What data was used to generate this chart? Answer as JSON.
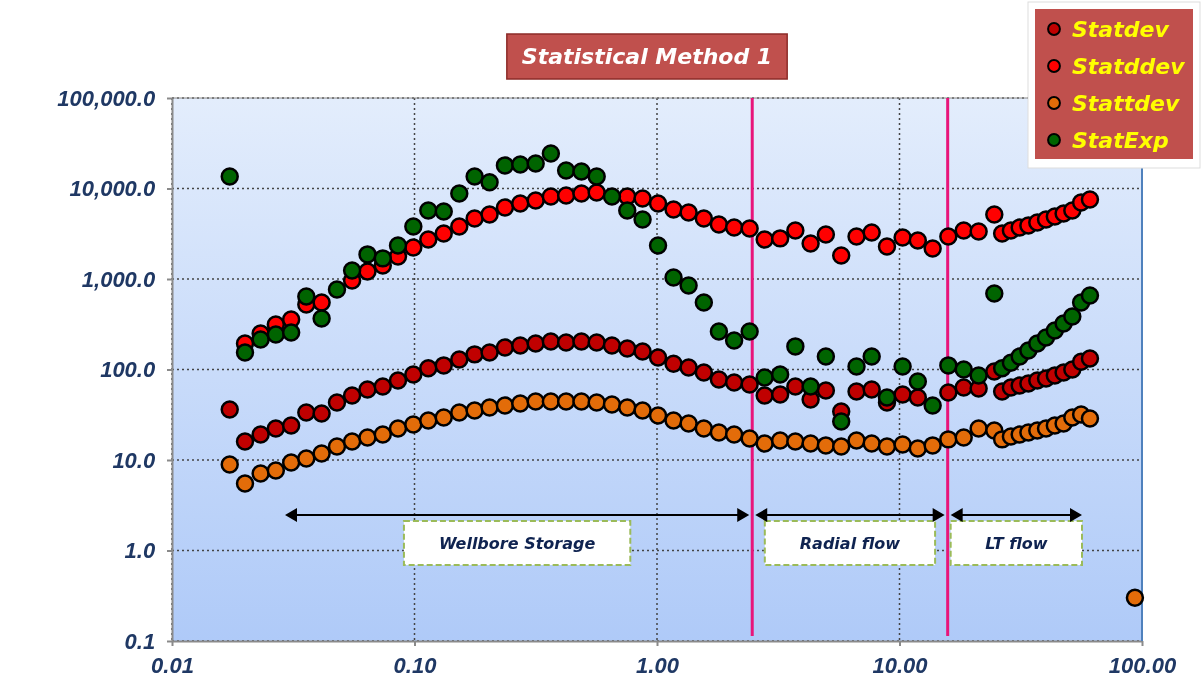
{
  "chart_data": {
    "type": "scatter",
    "title": "Statistical Method 1",
    "x": [
      0.0173,
      0.02,
      0.0232,
      0.0268,
      0.031,
      0.0358,
      0.0414,
      0.0479,
      0.0553,
      0.064,
      0.074,
      0.0855,
      0.0989,
      0.114,
      0.132,
      0.153,
      0.177,
      0.204,
      0.236,
      0.273,
      0.316,
      0.365,
      0.422,
      0.488,
      0.564,
      0.652,
      0.754,
      0.872,
      1.01,
      1.17,
      1.35,
      1.56,
      1.8,
      2.08,
      2.41,
      2.78,
      3.22,
      3.72,
      4.3,
      4.97,
      5.75,
      6.65,
      7.68,
      8.88,
      10.3,
      11.9,
      13.7,
      15.9,
      18.4,
      21.2,
      24.6,
      26.5,
      28.8,
      31.3,
      34,
      37,
      40.2,
      43.7,
      47.5,
      51.6,
      56.1,
      61
    ],
    "series": [
      {
        "name": "Statdev",
        "color": "#c00000",
        "values": [
          36.1,
          16,
          19.1,
          22.3,
          24,
          33.5,
          32.7,
          43.2,
          51.6,
          60.1,
          64.9,
          75.5,
          88.1,
          103,
          111,
          129,
          147,
          154,
          175,
          184,
          194,
          204,
          199,
          204,
          199,
          184,
          171,
          158,
          136,
          116,
          105,
          92.7,
          77.6,
          71.8,
          68.2,
          51.6,
          53,
          64.9,
          46.6,
          58.6,
          34.4,
          57.1,
          60.1,
          43.2,
          53,
          49.1,
          null,
          55.7,
          63.2,
          61.7,
          95,
          57.1,
          63.2,
          66.5,
          70,
          75.5,
          79.6,
          85.9,
          92.7,
          100,
          122,
          132
        ]
      },
      {
        "name": "Statddev",
        "color": "#ff0000",
        "values": [
          null,
          194,
          250,
          314,
          357,
          522,
          549,
          null,
          962,
          1210,
          1410,
          1770,
          2230,
          2730,
          3180,
          3800,
          4670,
          5160,
          6170,
          6820,
          7360,
          8160,
          8370,
          8810,
          9040,
          null,
          8160,
          7760,
          6820,
          5860,
          5430,
          4670,
          4000,
          3700,
          3610,
          2730,
          2810,
          3440,
          2470,
          3100,
          1820,
          2950,
          3270,
          2290,
          2880,
          2660,
          2170,
          2950,
          3440,
          3350,
          5160,
          3180,
          3440,
          3700,
          3900,
          4210,
          4550,
          4910,
          5300,
          5710,
          7000,
          7560
        ]
      },
      {
        "name": "Stattdev",
        "color": "#e36c09",
        "x": [
          0.0173,
          0.02,
          0.0232,
          0.0268,
          0.031,
          0.0358,
          0.0414,
          0.0479,
          0.0553,
          0.064,
          0.074,
          0.0855,
          0.0989,
          0.114,
          0.132,
          0.153,
          0.177,
          0.204,
          0.236,
          0.273,
          0.316,
          0.365,
          0.422,
          0.488,
          0.564,
          0.652,
          0.754,
          0.872,
          1.01,
          1.17,
          1.35,
          1.56,
          1.8,
          2.08,
          2.41,
          2.78,
          3.22,
          3.72,
          4.3,
          4.97,
          5.75,
          6.65,
          7.68,
          8.88,
          10.3,
          11.9,
          13.7,
          15.9,
          18.4,
          21.2,
          24.6,
          26.5,
          28.8,
          31.3,
          34,
          37,
          40.2,
          43.7,
          47.5,
          51.6,
          56.1,
          61,
          93.5
        ],
        "values": [
          8.91,
          5.5,
          7.1,
          7.65,
          9.38,
          10.4,
          11.8,
          14.1,
          16,
          17.7,
          19.1,
          22.3,
          24.7,
          27.3,
          29.5,
          33.5,
          35.2,
          38,
          40,
          42.1,
          44.3,
          44.3,
          44.3,
          44.3,
          43.2,
          41,
          38,
          35.2,
          31,
          27.3,
          25.3,
          22.3,
          20.1,
          19.1,
          17.3,
          15.2,
          16.4,
          16,
          15.2,
          14.5,
          14.1,
          16.4,
          15.2,
          14.1,
          14.8,
          13.4,
          14.5,
          16.9,
          17.7,
          22.3,
          21.2,
          16.9,
          18.2,
          19.1,
          20.1,
          21.2,
          22.3,
          24,
          25.3,
          29.5,
          31.8,
          28.8,
          0.3
        ]
      },
      {
        "name": "StatExp",
        "color": "#006400",
        "values": [
          13600,
          154,
          215,
          244,
          256,
          641,
          366,
          766,
          1240,
          1870,
          1690,
          2350,
          3800,
          5710,
          5570,
          8810,
          13600,
          11700,
          18000,
          18400,
          18900,
          24400,
          15800,
          15400,
          13600,
          8160,
          5710,
          4550,
          2350,
          1040,
          847,
          549,
          263,
          209,
          263,
          81.6,
          88.1,
          180,
          64.9,
          139,
          26.6,
          108,
          139,
          49.1,
          108,
          73.6,
          40,
          111,
          100,
          85.9,
          692,
          103,
          119,
          139,
          162,
          194,
          226,
          270,
          322,
          385,
          549,
          658
        ]
      }
    ],
    "xlim": [
      0.01,
      100
    ],
    "ylim": [
      0.1,
      100000
    ],
    "xticks": [
      {
        "value": 0.01,
        "label": "0.01"
      },
      {
        "value": 0.1,
        "label": "0.10"
      },
      {
        "value": 1,
        "label": "1.00"
      },
      {
        "value": 10,
        "label": "10.00"
      },
      {
        "value": 100,
        "label": "100.00"
      }
    ],
    "yticks": [
      {
        "value": 0.1,
        "label": "0.1"
      },
      {
        "value": 1,
        "label": "1.0"
      },
      {
        "value": 10,
        "label": "10.0"
      },
      {
        "value": 100,
        "label": "100.0"
      },
      {
        "value": 1000,
        "label": "1,000.0"
      },
      {
        "value": 10000,
        "label": "10,000.0"
      },
      {
        "value": 100000,
        "label": "100,000.0"
      }
    ],
    "log": "xy",
    "grid": true,
    "legend": "top right",
    "marker": "circle",
    "ref_lines": [
      {
        "axis": "x",
        "value": 2.47,
        "color": "#e8157a"
      },
      {
        "axis": "x",
        "value": 15.8,
        "color": "#e8157a"
      }
    ],
    "annotations": [
      "Wellbore Storage",
      "Radial flow",
      "LT flow"
    ]
  }
}
